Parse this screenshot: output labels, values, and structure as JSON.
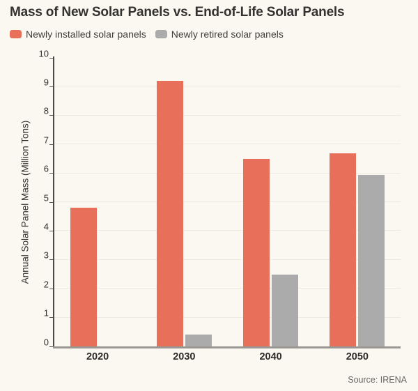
{
  "title": "Mass of New Solar Panels vs. End-of-Life Solar Panels",
  "legend": [
    {
      "label": "Newly installed solar panels",
      "color": "#e8705a"
    },
    {
      "label": "Newly retired solar panels",
      "color": "#ababab"
    }
  ],
  "source": "Source: IRENA",
  "colors": {
    "background": "#faf8f1",
    "installed": "#e8705a",
    "retired": "#ababab",
    "gridline": "#edeae2",
    "axis_left": "#4b4946",
    "axis_bottom": "#9b9894"
  },
  "chart_data": {
    "type": "bar",
    "categories": [
      "2020",
      "2030",
      "2040",
      "2050"
    ],
    "series": [
      {
        "name": "Newly installed solar panels",
        "color": "#e8705a",
        "values": [
          4.8,
          9.2,
          6.5,
          6.7
        ]
      },
      {
        "name": "Newly retired solar panels",
        "color": "#ababab",
        "values": [
          0,
          0.4,
          2.5,
          5.95
        ]
      }
    ],
    "title": "Mass of New Solar Panels vs. End-of-Life Solar Panels",
    "xlabel": "",
    "ylabel": "Annual Solar Panel Mass (Million Tons)",
    "ylim": [
      0,
      10
    ],
    "yticks": [
      0,
      1,
      2,
      3,
      4,
      5,
      6,
      7,
      8,
      9,
      10
    ],
    "grid": true,
    "legend_position": "top-left"
  }
}
